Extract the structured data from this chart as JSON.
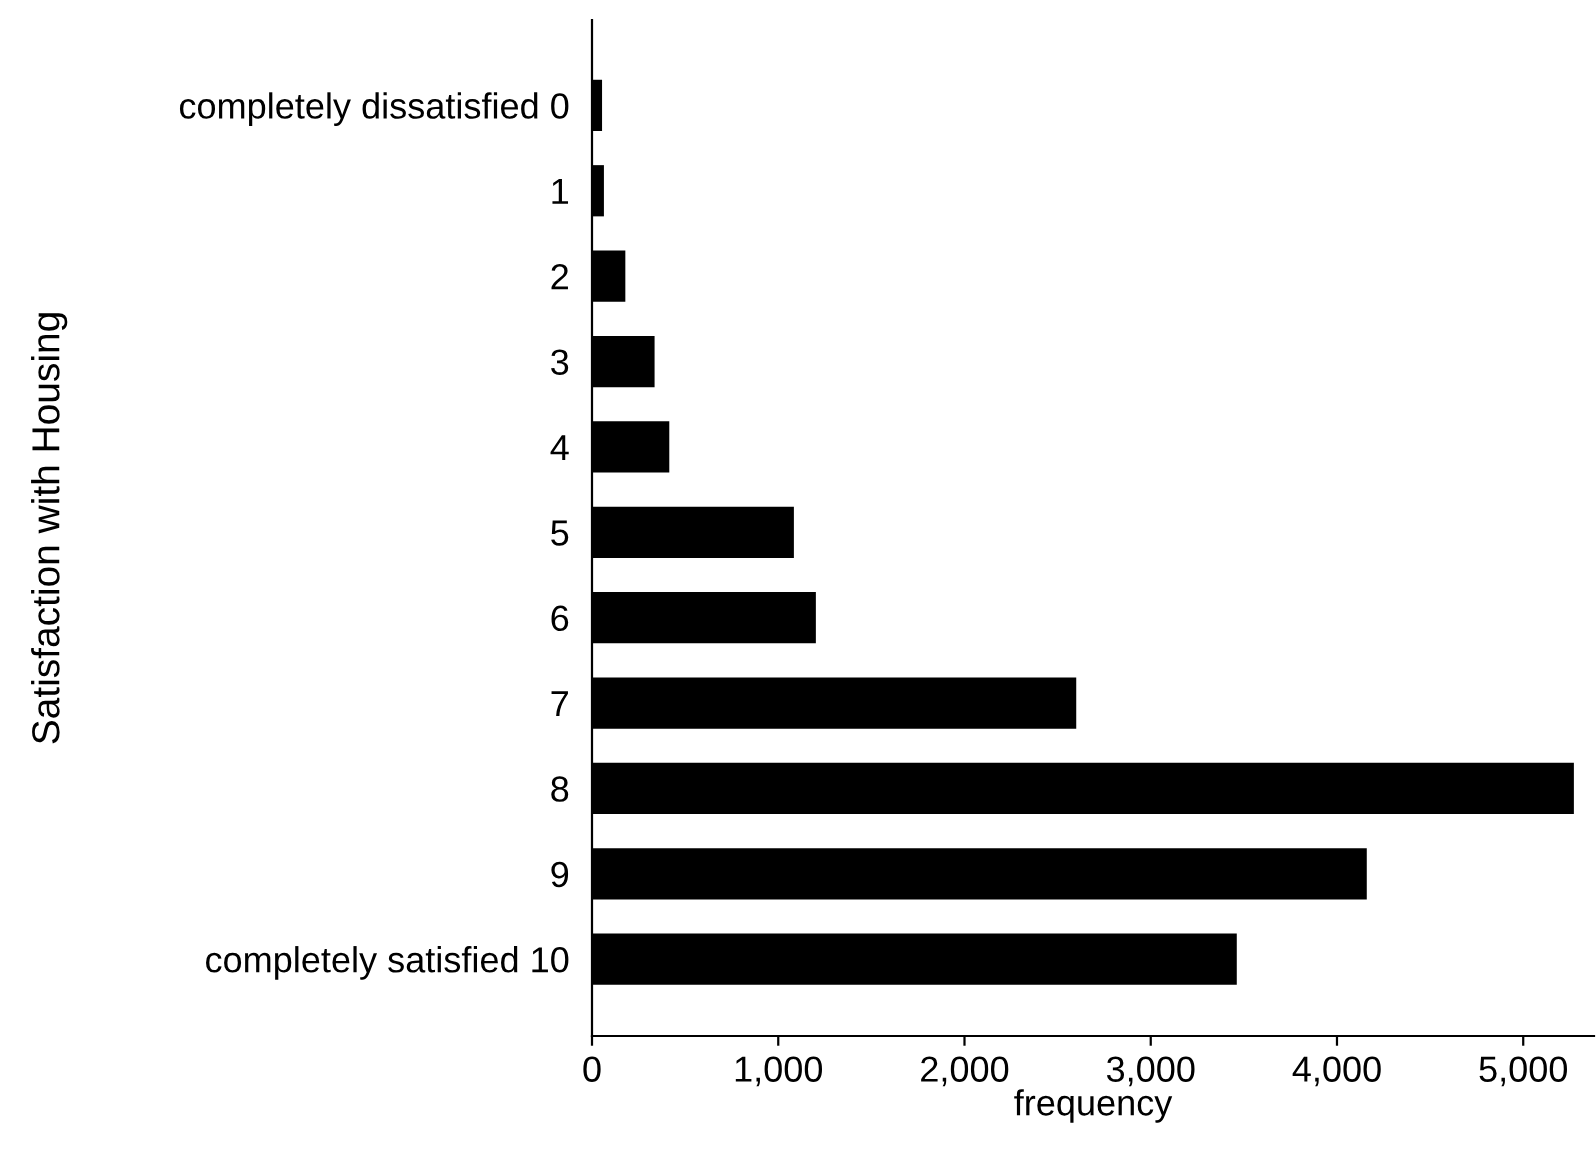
{
  "chart_data": {
    "type": "bar",
    "orientation": "horizontal",
    "xlabel": "frequency",
    "ylabel": "Satisfaction with Housing",
    "categories": [
      "completely dissatisfied 0",
      "1",
      "2",
      "3",
      "4",
      "5",
      "6",
      "7",
      "8",
      "9",
      "completely satisfied 10"
    ],
    "values": [
      54,
      64,
      179,
      336,
      415,
      1084,
      1202,
      2600,
      5272,
      4160,
      3462
    ],
    "color": "#000000",
    "xlim": [
      0,
      5380
    ],
    "xticks": [
      {
        "value": 0,
        "label": "0"
      },
      {
        "value": 1000,
        "label": "1,000"
      },
      {
        "value": 2000,
        "label": "2,000"
      },
      {
        "value": 3000,
        "label": "3,000"
      },
      {
        "value": 4000,
        "label": "4,000"
      },
      {
        "value": 5000,
        "label": "5,000"
      }
    ],
    "grid": false
  }
}
